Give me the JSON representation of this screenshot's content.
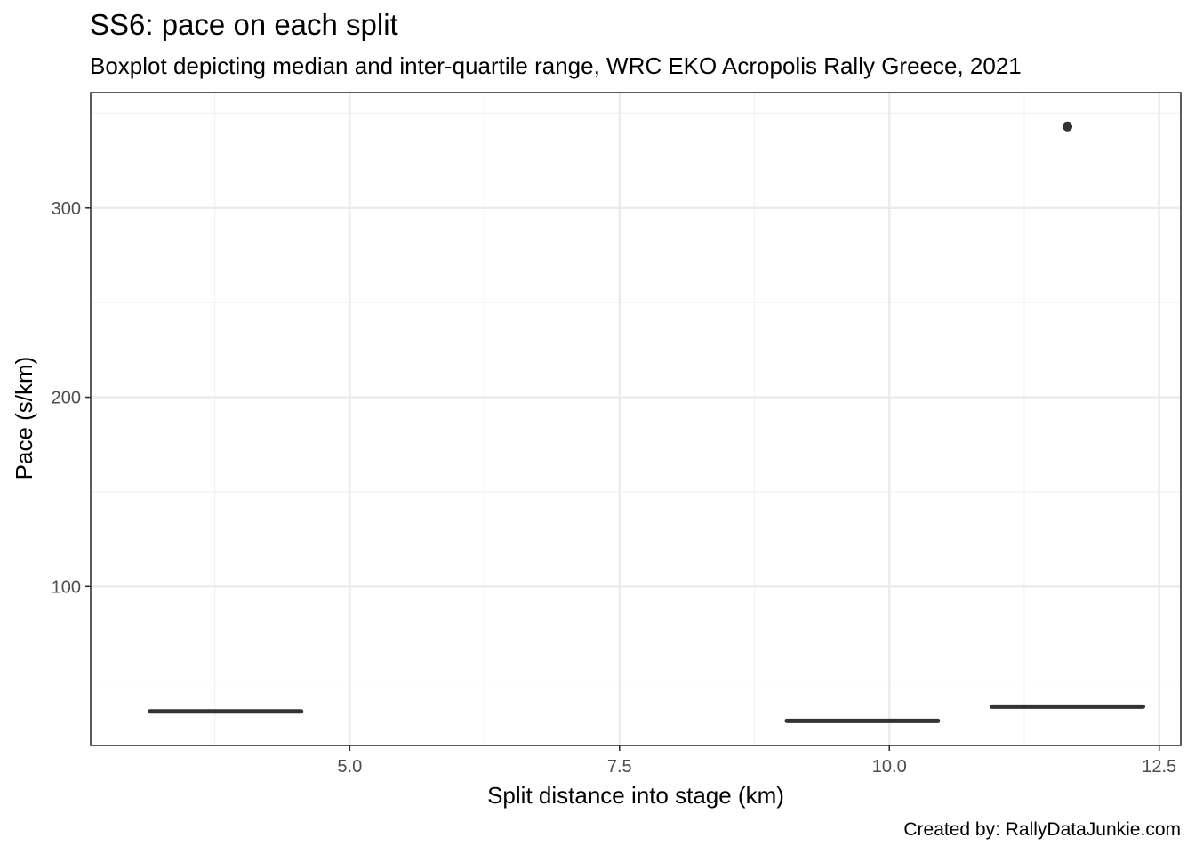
{
  "chart_data": {
    "type": "boxplot",
    "title": "SS6: pace on each split",
    "subtitle": "Boxplot depicting median and inter-quartile range, WRC EKO Acropolis Rally Greece, 2021",
    "xlabel": "Split distance into stage (km)",
    "ylabel": "Pace (s/km)",
    "caption": "Created by: RallyDataJunkie.com",
    "xlim": [
      2.6,
      12.7
    ],
    "ylim": [
      16,
      361
    ],
    "x_ticks": [
      5.0,
      7.5,
      10.0,
      12.5
    ],
    "x_tick_labels": [
      "5.0",
      "7.5",
      "10.0",
      "12.5"
    ],
    "y_ticks": [
      100,
      200,
      300
    ],
    "y_tick_labels": [
      "100",
      "200",
      "300"
    ],
    "x_minor_gridlines": [
      3.75,
      6.25,
      8.75,
      11.25
    ],
    "y_minor_gridlines": [
      50,
      150,
      250,
      350
    ],
    "grid": true,
    "theme": "bw",
    "boxes": [
      {
        "x_start": 3.15,
        "x_end": 4.55,
        "median": 34
      },
      {
        "x_start": 9.05,
        "x_end": 10.45,
        "median": 29
      },
      {
        "x_start": 10.95,
        "x_end": 12.35,
        "median": 36.5
      }
    ],
    "outliers": [
      {
        "x": 11.65,
        "y": 343
      }
    ],
    "colors": {
      "box": "#333333",
      "outlier": "#333333",
      "grid_major": "#ebebeb",
      "grid_minor": "#f2f2f2",
      "panel_border": "#333333",
      "tick_text": "#4d4d4d"
    }
  }
}
